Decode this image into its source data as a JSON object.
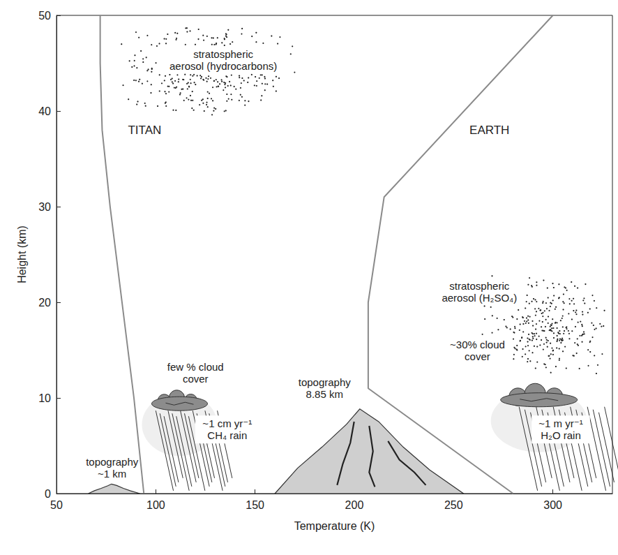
{
  "chart_data": {
    "type": "line",
    "x_label": "Temperature (K)",
    "y_label": "Height (km)",
    "xlim": [
      50,
      330
    ],
    "xticks": [
      50,
      100,
      150,
      200,
      250,
      300
    ],
    "ylim": [
      0,
      50
    ],
    "yticks": [
      0,
      10,
      20,
      30,
      40,
      50
    ],
    "grid": false,
    "series": [
      {
        "name": "TITAN",
        "color": "#8a8a8a",
        "x": [
          94,
          91.5,
          89,
          86,
          83,
          80,
          77,
          74.5,
          73,
          72,
          72
        ],
        "values": [
          0,
          5,
          10,
          15,
          20,
          25,
          30,
          35,
          38,
          45,
          50
        ]
      },
      {
        "name": "EARTH",
        "color": "#8a8a8a",
        "x": [
          280,
          207,
          207,
          215,
          300
        ],
        "values": [
          0,
          11,
          20,
          31,
          50
        ]
      }
    ],
    "aerosols": [
      {
        "label": "stratospheric\naerosol (hydrocarbons)"
      },
      {
        "label": "stratospheric\naerosol (H₂SO₄)"
      }
    ],
    "clouds": [
      {
        "label": "few % cloud\ncover",
        "rain": "~1 cm yr⁻¹\nCH₄ rain"
      },
      {
        "label": "~30% cloud\ncover",
        "rain": "~1 m yr⁻¹\nH₂O rain"
      }
    ],
    "topography": [
      {
        "label": "topography\n~1 km",
        "height": 1
      },
      {
        "label": "topography\n8.85 km",
        "height": 8.85
      }
    ]
  }
}
